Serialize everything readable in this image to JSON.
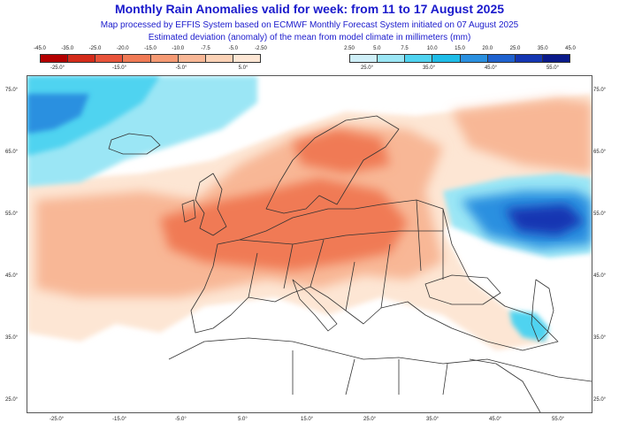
{
  "title": "Monthly Rain Anomalies valid for week: from 11 to 17 August 2025",
  "subtitle_1": "Map processed by EFFIS System based on ECMWF Monthly Forecast System initiated on 07 August 2025",
  "subtitle_2": "Estimated deviation (anomaly) of the mean from model climate in millimeters (mm)",
  "legend": {
    "negative": {
      "labels": [
        "-45.0",
        "-35.0",
        "-25.0",
        "-20.0",
        "-15.0",
        "-10.0",
        "-7.5",
        "-5.0",
        "-2.50"
      ],
      "colors": [
        "#b40000",
        "#d42b1a",
        "#e8533a",
        "#f07a55",
        "#f59a74",
        "#f8b796",
        "#fbd2b6",
        "#fde6d4"
      ]
    },
    "positive": {
      "labels": [
        "2.50",
        "5.0",
        "7.5",
        "10.0",
        "15.0",
        "20.0",
        "25.0",
        "35.0",
        "45.0"
      ],
      "colors": [
        "#cfeff8",
        "#9be6f5",
        "#4fd3f0",
        "#1fbde8",
        "#2a90e0",
        "#1f62cf",
        "#1436b2",
        "#0a1a8a"
      ]
    }
  },
  "map": {
    "lon_ticks": [
      "-25.0°",
      "-15.0°",
      "-5.0°",
      "5.0°",
      "15.0°",
      "25.0°",
      "35.0°",
      "45.0°",
      "55.0°"
    ],
    "lat_ticks": [
      "75.0°",
      "65.0°",
      "55.0°",
      "45.0°",
      "35.0°",
      "25.0°"
    ],
    "colors": {
      "dry_light": "#fde6d4",
      "dry_mid": "#f8b796",
      "dry_strong": "#f07a55",
      "wet_light": "#9be6f5",
      "wet_mid": "#4fd3f0",
      "wet_strong": "#2a90e0",
      "wet_deep": "#1436b2",
      "coast": "#333333"
    }
  }
}
